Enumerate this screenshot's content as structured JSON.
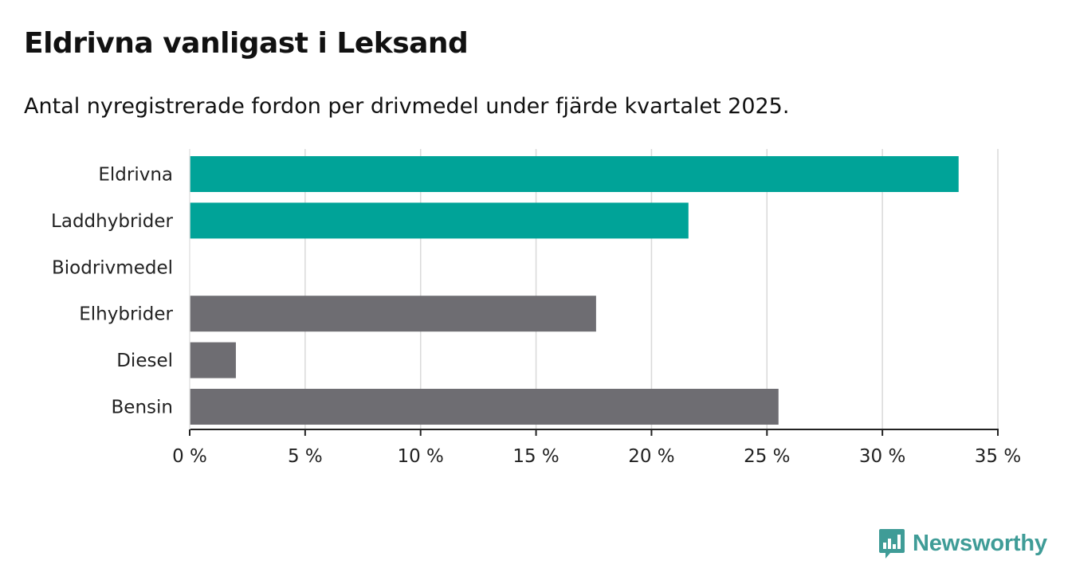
{
  "title": "Eldrivna vanligast i Leksand",
  "subtitle": "Antal nyregistrerade fordon per drivmedel under fjärde kvartalet 2025.",
  "brand": {
    "name": "Newsworthy",
    "icon": "newsworthy-chart-logo-icon",
    "color": "#3f9c97"
  },
  "chart_data": {
    "type": "bar",
    "orientation": "horizontal",
    "title": "Eldrivna vanligast i Leksand",
    "subtitle": "Antal nyregistrerade fordon per drivmedel under fjärde kvartalet 2025.",
    "categories": [
      "Eldrivna",
      "Laddhybrider",
      "Biodrivmedel",
      "Elhybrider",
      "Diesel",
      "Bensin"
    ],
    "values": [
      33.3,
      21.6,
      0,
      17.6,
      2.0,
      25.5
    ],
    "highlight_color": "#00a398",
    "base_color": "#6e6d72",
    "highlighted": [
      true,
      true,
      true,
      false,
      false,
      false
    ],
    "xlim": [
      0,
      35
    ],
    "xticks": [
      0,
      5,
      10,
      15,
      20,
      25,
      30,
      35
    ],
    "tick_labels": [
      "0 %",
      "5 %",
      "10 %",
      "15 %",
      "20 %",
      "25 %",
      "30 %",
      "35 %"
    ],
    "grid": true,
    "xlabel": "",
    "ylabel": ""
  }
}
